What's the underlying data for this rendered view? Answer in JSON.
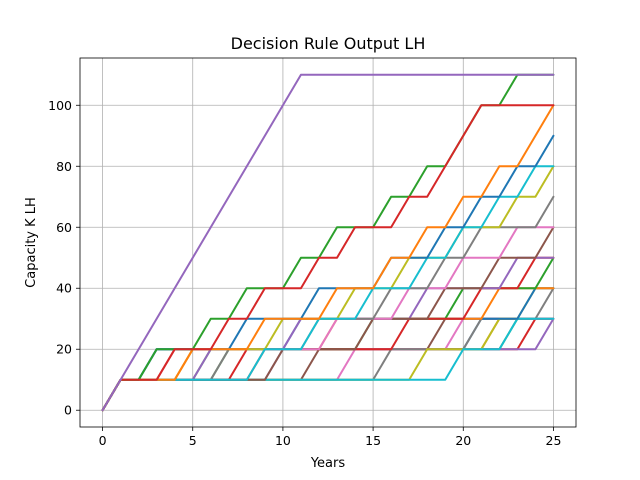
{
  "chart_data": {
    "type": "line",
    "title": "Decision Rule Output LH",
    "xlabel": "Years",
    "ylabel": "Capacity K LH",
    "xlim": [
      -1.25,
      26.25
    ],
    "ylim": [
      -5.5,
      115.5
    ],
    "xticks": [
      0,
      5,
      10,
      15,
      20,
      25
    ],
    "yticks": [
      0,
      20,
      40,
      60,
      80,
      100
    ],
    "grid": true,
    "step": 10,
    "horizon": 25,
    "colors": [
      "#1f77b4",
      "#ff7f0e",
      "#2ca02c",
      "#d62728",
      "#9467bd",
      "#8c564b",
      "#e377c2",
      "#7f7f7f",
      "#bcbd22",
      "#17becf"
    ],
    "series": [
      {
        "steps": [
          0,
          2,
          20
        ]
      },
      {
        "steps": [
          0,
          3,
          21
        ]
      },
      {
        "steps": [
          0,
          5,
          22
        ]
      },
      {
        "steps": [
          0,
          7,
          23
        ]
      },
      {
        "steps": [
          0,
          9,
          24
        ]
      },
      {
        "steps": [
          0,
          11,
          18
        ]
      },
      {
        "steps": [
          0,
          13,
          19
        ]
      },
      {
        "steps": [
          0,
          15,
          20,
          24
        ]
      },
      {
        "steps": [
          0,
          17,
          21,
          23
        ]
      },
      {
        "steps": [
          0,
          19,
          22
        ]
      },
      {
        "steps": [
          0,
          2,
          10,
          23
        ]
      },
      {
        "steps": [
          0,
          4,
          12,
          21
        ]
      },
      {
        "steps": [
          0,
          6,
          14,
          19,
          24
        ]
      },
      {
        "steps": [
          0,
          8,
          16,
          20,
          23
        ]
      },
      {
        "steps": [
          0,
          5,
          10,
          17,
          22
        ]
      },
      {
        "steps": [
          0,
          9,
          14,
          18,
          21,
          24
        ]
      },
      {
        "steps": [
          0,
          3,
          12,
          16,
          19,
          22
        ]
      },
      {
        "steps": [
          0,
          6,
          11,
          15,
          18,
          20,
          24
        ]
      },
      {
        "steps": [
          0,
          4,
          9,
          13,
          16,
          19,
          22,
          24
        ]
      },
      {
        "steps": [
          0,
          8,
          11,
          14,
          17,
          19,
          21,
          23
        ]
      },
      {
        "steps": [
          0,
          2,
          7,
          11,
          15,
          18,
          20,
          22,
          24
        ]
      },
      {
        "steps": [
          0,
          4,
          8,
          12,
          15,
          17,
          19,
          21,
          23,
          24
        ]
      },
      {
        "steps": [
          0,
          2,
          5,
          7,
          10,
          12,
          15,
          17,
          19,
          20,
          22
        ]
      },
      {
        "steps": [
          0,
          3,
          6,
          8,
          11,
          13,
          16,
          18,
          19,
          20
        ]
      },
      {
        "steps": [
          0,
          1,
          2,
          3,
          4,
          5,
          6,
          7,
          8,
          9,
          10
        ]
      }
    ]
  }
}
